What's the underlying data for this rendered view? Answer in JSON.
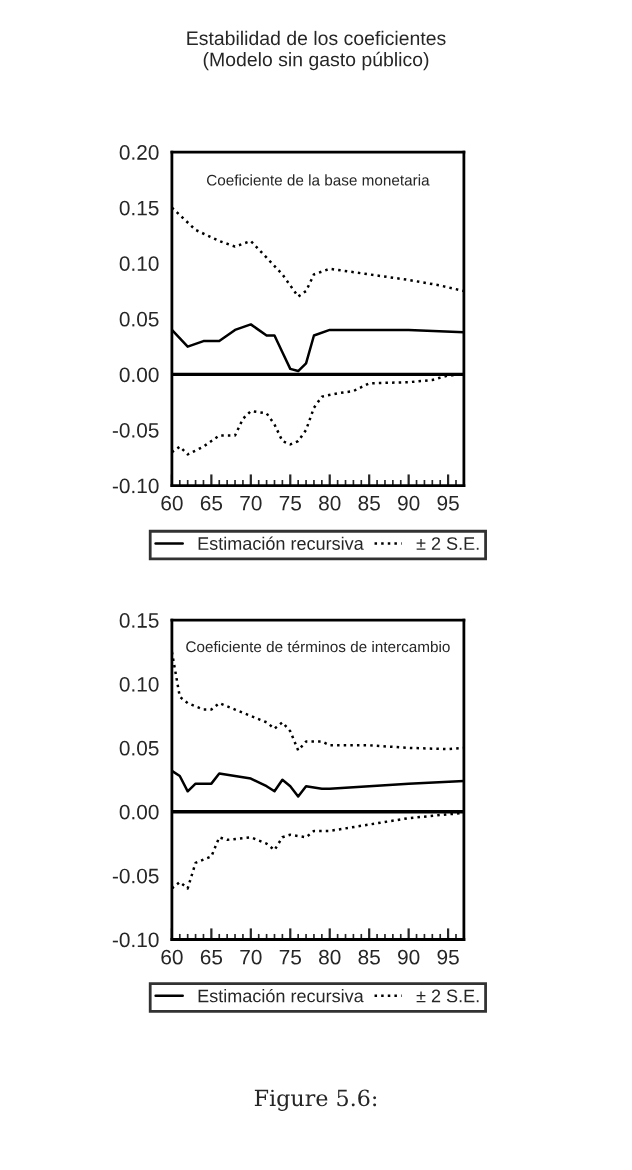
{
  "chart_data": [
    {
      "type": "line",
      "title": "Estabilidad de los coeficientes\n(Modelo sin gasto público)",
      "annotations": [
        "Coeficiente de la base monetaria"
      ],
      "xlim": [
        60,
        97
      ],
      "xticks": [
        60,
        65,
        70,
        75,
        80,
        85,
        90,
        95
      ],
      "ylim": [
        -0.1,
        0.2
      ],
      "yticks": [
        {
          "value": -0.1,
          "label": "-0.10"
        },
        {
          "value": -0.05,
          "label": "-0.05"
        },
        {
          "value": 0.0,
          "label": "0.00"
        },
        {
          "value": 0.05,
          "label": "0.05"
        },
        {
          "value": 0.1,
          "label": "0.10"
        },
        {
          "value": 0.15,
          "label": "0.15"
        },
        {
          "value": 0.2,
          "label": "0.20"
        }
      ],
      "legend": "bottom",
      "grid": false,
      "ref_lines": [
        {
          "axis": "y",
          "value": 0,
          "color": "#000000"
        }
      ],
      "series": [
        {
          "name": "Estimación recursiva",
          "color": "#000000",
          "line_style": "solid",
          "x": [
            60,
            62,
            64,
            66,
            68,
            70,
            72,
            73,
            74,
            75,
            76,
            77,
            78,
            80,
            85,
            90,
            97
          ],
          "values": [
            0.04,
            0.025,
            0.03,
            0.03,
            0.04,
            0.045,
            0.035,
            0.035,
            0.02,
            0.005,
            0.003,
            0.01,
            0.035,
            0.04,
            0.04,
            0.04,
            0.038
          ]
        },
        {
          "name": "± 2 S.E.",
          "color": "#000000",
          "line_style": "dotted",
          "x": [
            60,
            63,
            66,
            68,
            70,
            72,
            74,
            76,
            77,
            78,
            80,
            85,
            90,
            94,
            97
          ],
          "values": [
            0.15,
            0.13,
            0.12,
            0.115,
            0.12,
            0.105,
            0.09,
            0.07,
            0.075,
            0.09,
            0.095,
            0.09,
            0.085,
            0.08,
            0.075
          ]
        },
        {
          "color": "#000000",
          "line_style": "dotted",
          "x": [
            60,
            61,
            62,
            64,
            66,
            68,
            69,
            70,
            72,
            73,
            74,
            75,
            76,
            77,
            78,
            79,
            81,
            83,
            85,
            90,
            93,
            95,
            97
          ],
          "values": [
            -0.07,
            -0.065,
            -0.072,
            -0.065,
            -0.055,
            -0.055,
            -0.04,
            -0.033,
            -0.035,
            -0.045,
            -0.06,
            -0.063,
            -0.06,
            -0.05,
            -0.03,
            -0.02,
            -0.017,
            -0.015,
            -0.008,
            -0.007,
            -0.005,
            -0.001,
            0.0
          ]
        }
      ]
    },
    {
      "type": "line",
      "annotations": [
        "Coeficiente de términos de intercambio",
        "Figure 5.6:"
      ],
      "xlim": [
        60,
        97
      ],
      "xticks": [
        60,
        65,
        70,
        75,
        80,
        85,
        90,
        95
      ],
      "ylim": [
        -0.1,
        0.15
      ],
      "yticks": [
        {
          "value": -0.1,
          "label": "-0.10"
        },
        {
          "value": -0.05,
          "label": "-0.05"
        },
        {
          "value": 0.0,
          "label": "0.00"
        },
        {
          "value": 0.05,
          "label": "0.05"
        },
        {
          "value": 0.1,
          "label": "0.10"
        },
        {
          "value": 0.15,
          "label": "0.15"
        }
      ],
      "legend": "bottom",
      "grid": false,
      "ref_lines": [
        {
          "axis": "y",
          "value": 0,
          "color": "#000000"
        }
      ],
      "series": [
        {
          "name": "Estimación recursiva",
          "color": "#000000",
          "line_style": "solid",
          "x": [
            60,
            61,
            62,
            63,
            65,
            66,
            68,
            70,
            72,
            73,
            74,
            75,
            76,
            77,
            79,
            80,
            85,
            90,
            97
          ],
          "values": [
            0.032,
            0.028,
            0.016,
            0.022,
            0.022,
            0.03,
            0.028,
            0.026,
            0.02,
            0.016,
            0.025,
            0.02,
            0.012,
            0.02,
            0.018,
            0.018,
            0.02,
            0.022,
            0.024
          ]
        },
        {
          "name": "± 2 S.E.",
          "color": "#000000",
          "line_style": "dotted",
          "x": [
            60,
            61,
            62,
            64,
            65,
            66,
            68,
            70,
            72,
            73,
            74,
            75,
            76,
            77,
            79,
            80,
            85,
            90,
            95,
            97
          ],
          "values": [
            0.125,
            0.09,
            0.085,
            0.08,
            0.08,
            0.085,
            0.08,
            0.075,
            0.07,
            0.065,
            0.07,
            0.063,
            0.048,
            0.055,
            0.055,
            0.052,
            0.052,
            0.05,
            0.049,
            0.05
          ]
        },
        {
          "color": "#000000",
          "line_style": "dotted",
          "x": [
            60,
            61,
            62,
            63,
            65,
            66,
            67,
            70,
            72,
            73,
            74,
            75,
            77,
            78,
            80,
            85,
            90,
            95,
            97
          ],
          "values": [
            -0.06,
            -0.055,
            -0.06,
            -0.04,
            -0.035,
            -0.02,
            -0.022,
            -0.02,
            -0.025,
            -0.03,
            -0.02,
            -0.018,
            -0.02,
            -0.015,
            -0.015,
            -0.01,
            -0.005,
            -0.002,
            -0.001
          ]
        }
      ]
    }
  ]
}
